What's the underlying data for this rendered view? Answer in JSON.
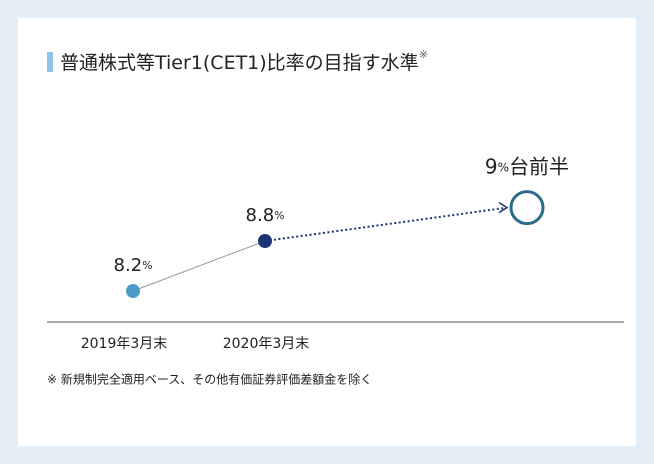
{
  "chart_data": {
    "type": "line",
    "title": "普通株式等Tier1(CET1)比率の目指す水準",
    "title_note": "※",
    "categories": [
      "2019年3月末",
      "2020年3月末",
      null
    ],
    "values": [
      8.2,
      8.8,
      9.2
    ],
    "value_labels": [
      "8.2%",
      "8.8%",
      "9%台前半"
    ],
    "colors": [
      "#4a9bc8",
      "#1d3577",
      "#2d6b8b"
    ],
    "footnote": "※ 新規制完全適用ベース、その他有価証券評価差額金を除く"
  }
}
